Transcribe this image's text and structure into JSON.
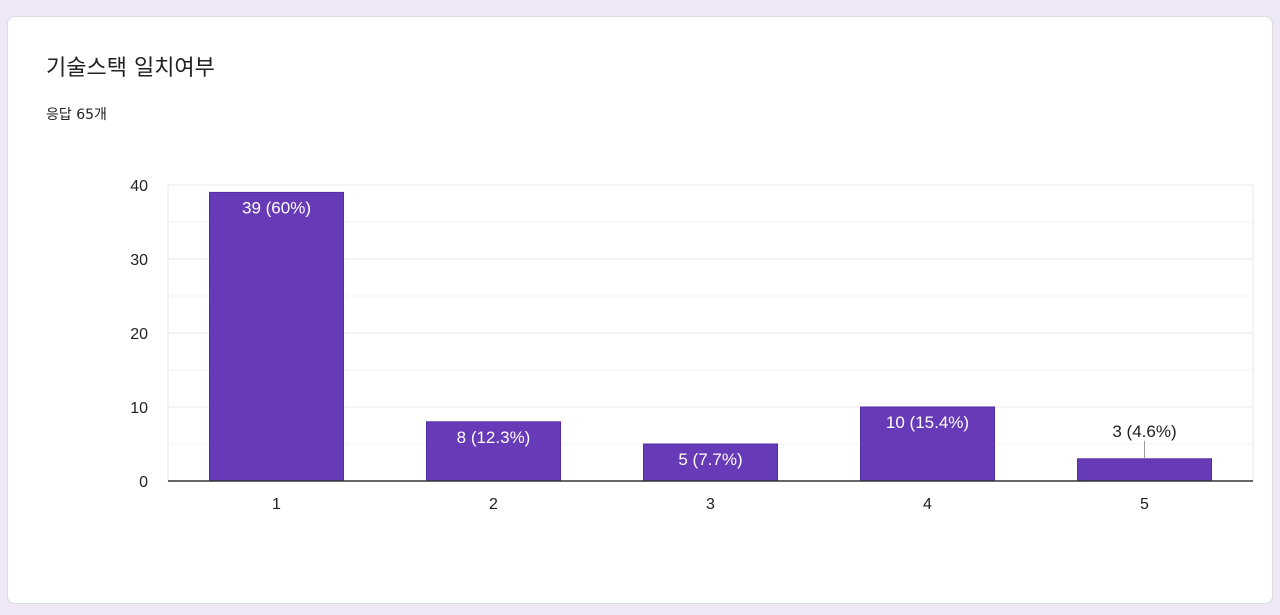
{
  "card": {
    "title": "기술스택 일치여부",
    "subtitle": "응답 65개"
  },
  "colors": {
    "bar": "#673ab7",
    "grid": "#e8e8e8",
    "minor_grid": "#f3f3f3",
    "axis": "#333333",
    "text": "#202124",
    "label_inside": "#ffffff",
    "label_outside": "#202124"
  },
  "chart_data": {
    "type": "bar",
    "categories": [
      "1",
      "2",
      "3",
      "4",
      "5"
    ],
    "values": [
      39,
      8,
      5,
      10,
      3
    ],
    "labels": [
      "39 (60%)",
      "8 (12.3%)",
      "5 (7.7%)",
      "10 (15.4%)",
      "3 (4.6%)"
    ],
    "yticks": [
      "0",
      "10",
      "20",
      "30",
      "40"
    ],
    "ylim": [
      0,
      40
    ],
    "grid": true,
    "legend": "none"
  }
}
